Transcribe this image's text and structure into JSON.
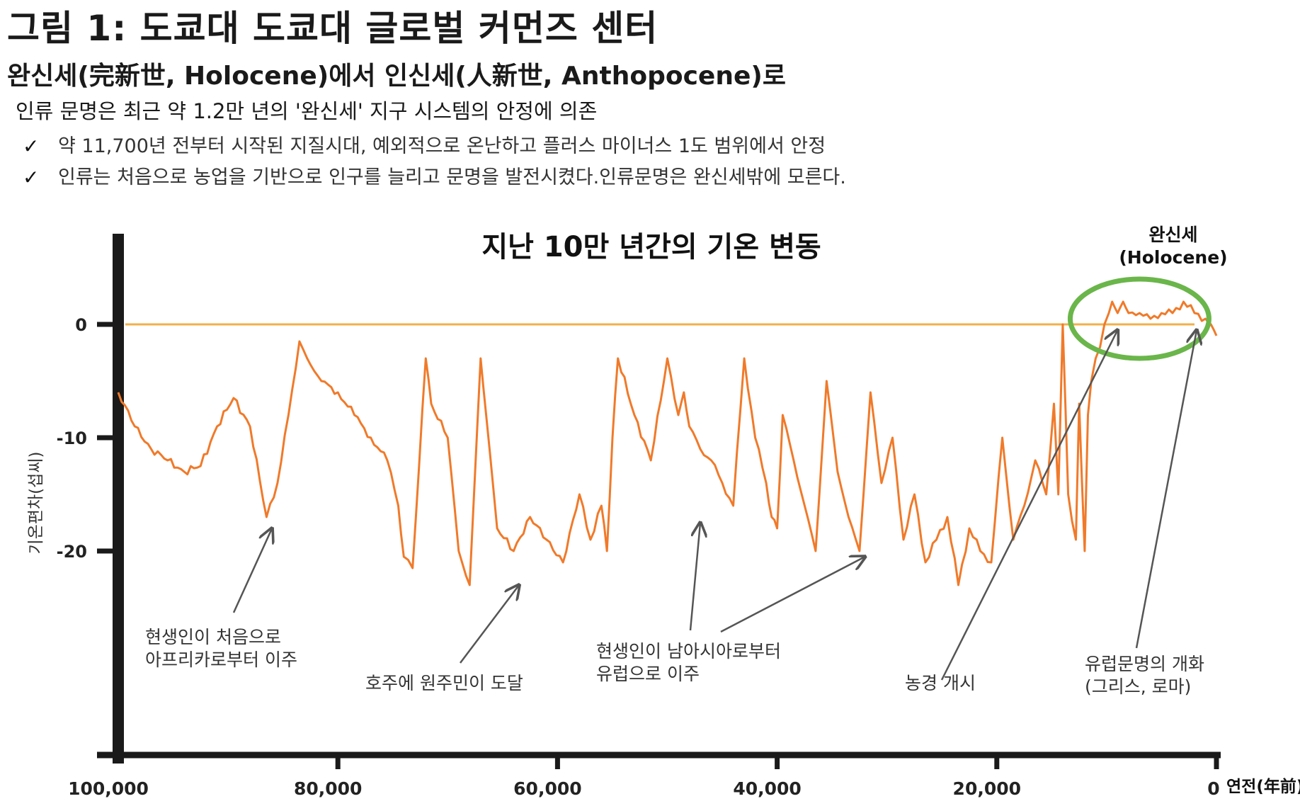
{
  "page": {
    "title": "그림 1: 도쿄대 도쿄대 글로벌 커먼즈 센터",
    "subtitle": "완신세(完新世, Holocene)에서 인신세(人新世, Anthopocene)로",
    "lead": "인류 문명은 최근 약 1.2만 년의 '완신세' 지구 시스템의 안정에 의존",
    "bullets": [
      "약 11,700년 전부터 시작된 지질시대, 예외적으로 온난하고 플러스 마이너스 1도 범위에서 안정",
      "인류는 처음으로 농업을 기반으로 인구를 늘리고 문명을 발전시켰다.인류문명은 완신세밖에 모른다."
    ],
    "check_symbol": "✓"
  },
  "chart_data": {
    "type": "line",
    "title": "지난 10만 년간의 기온 변동",
    "ylabel": "기온편차(섭씨)",
    "xlabel": "연전(年前)",
    "xlim": [
      100000,
      0
    ],
    "ylim": [
      -38,
      8
    ],
    "x_ticks": [
      100000,
      80000,
      60000,
      40000,
      20000,
      0
    ],
    "x_tick_labels": [
      "100,000",
      "80,000",
      "60,000",
      "40,000",
      "20,000",
      "0"
    ],
    "y_ticks": [
      0,
      -10,
      -20
    ],
    "y_tick_labels": [
      "0",
      "-10",
      "-20"
    ],
    "reference_line": {
      "value": 0,
      "color": "#f2b04a"
    },
    "line_color": "#f07a2a",
    "holocene_label_line1": "완신세",
    "holocene_label_line2": "(Holocene)",
    "holocene_circle_color": "#6ab64a",
    "series": [
      {
        "name": "기온편차",
        "x": [
          100000,
          98500,
          97000,
          95500,
          94000,
          92500,
          91000,
          89500,
          88000,
          86500,
          85500,
          84500,
          83500,
          82800,
          81500,
          80000,
          78500,
          77000,
          75500,
          74500,
          74000,
          73200,
          72000,
          71500,
          70000,
          69000,
          68000,
          67000,
          66500,
          65500,
          64000,
          62500,
          61000,
          59500,
          58000,
          57000,
          56000,
          55500,
          55000,
          54500,
          53000,
          51500,
          50000,
          49000,
          48500,
          48000,
          47000,
          46000,
          45000,
          44000,
          43000,
          42000,
          41000,
          40500,
          40000,
          39500,
          38500,
          37500,
          36500,
          35500,
          34500,
          33500,
          32500,
          31500,
          30500,
          29500,
          28500,
          27500,
          26500,
          25500,
          24500,
          23500,
          22500,
          21500,
          20500,
          19500,
          18500,
          17500,
          16500,
          15500,
          14800,
          14400,
          14000,
          13500,
          12800,
          12500,
          12000,
          11700,
          11400,
          11000,
          10600,
          10200,
          9800,
          9500,
          9000,
          8500,
          8000,
          7000,
          6000,
          5000,
          4000,
          3000,
          2000,
          1000,
          500,
          0
        ],
        "values": [
          -6,
          -9,
          -11,
          -12,
          -13,
          -12.5,
          -9,
          -6.5,
          -9,
          -17,
          -14,
          -8,
          -1.5,
          -3,
          -5,
          -6,
          -8,
          -10,
          -12,
          -16,
          -20.5,
          -21.5,
          -3,
          -7,
          -10,
          -20,
          -23,
          -3,
          -8,
          -18,
          -20,
          -17,
          -19,
          -21,
          -15,
          -19,
          -16,
          -20,
          -10,
          -3,
          -8,
          -12,
          -3,
          -8,
          -6,
          -9,
          -11,
          -12,
          -14,
          -16,
          -3,
          -10,
          -14,
          -17,
          -18,
          -8,
          -12,
          -16,
          -20,
          -5,
          -13,
          -17,
          -20,
          -6,
          -14,
          -10,
          -19,
          -15,
          -21,
          -19,
          -17,
          -23,
          -18,
          -20,
          -21,
          -10,
          -19,
          -16,
          -12,
          -15,
          -7,
          -15,
          0,
          -15,
          -19,
          -7,
          -20,
          -8,
          -5,
          -3,
          -2,
          0,
          1,
          2,
          1,
          2,
          1,
          1,
          0.5,
          1,
          1,
          2,
          1,
          0.5,
          0,
          -1
        ]
      }
    ],
    "annotations": [
      {
        "text_lines": [
          "현생인이 처음으로",
          "아프리카로부터 이주"
        ],
        "x": 86000,
        "y": -18
      },
      {
        "text_lines": [
          "호주에 원주민이 도달"
        ],
        "x": 63500,
        "y": -23
      },
      {
        "text_lines": [
          "현생인이 남아시아로부터",
          "유럽으로 이주"
        ],
        "x": 47000,
        "y": -17.5
      },
      {
        "text_lines": [],
        "x": 32000,
        "y": -20.5
      },
      {
        "text_lines": [
          "농경 개시"
        ],
        "x": 9000,
        "y": -0.5
      },
      {
        "text_lines": [
          "유럽문명의 개화",
          "(그리스, 로마)"
        ],
        "x": 1800,
        "y": -0.5
      }
    ]
  }
}
